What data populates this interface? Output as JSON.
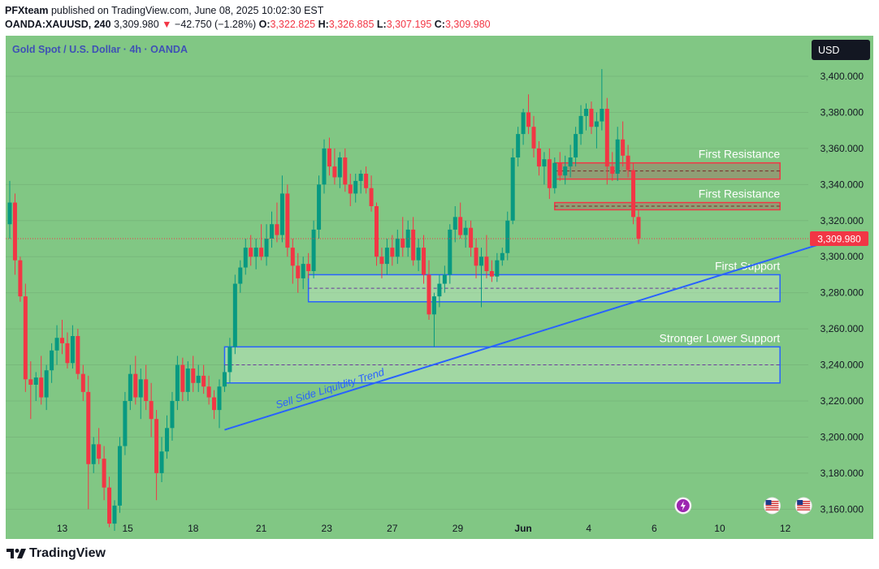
{
  "header": {
    "user": "PFXteam",
    "published_text": "published on TradingView.com, June 08, 2025 10:02:30 EST",
    "symbol": "OANDA:XAUUSD, 240",
    "price": "3,309.980",
    "change_arrow": "▼",
    "change": "−42.750 (−1.28%)",
    "o_label": "O:",
    "o_value": "3,322.825",
    "h_label": "H:",
    "h_value": "3,326.885",
    "l_label": "L:",
    "l_value": "3,307.195",
    "c_label": "C:",
    "c_value": "3,309.980"
  },
  "colors": {
    "background": "#81c784",
    "up": "#089981",
    "down": "#f23645",
    "zone_blue": "#2962ff",
    "zone_red": "#f23645",
    "axis_text": "#131722",
    "label_text": "#ffffff",
    "title_text": "#3f51b5"
  },
  "brand": {
    "name": "TradingView"
  },
  "chart_data": {
    "type": "candlestick",
    "title": "Gold Spot / U.S. Dollar · 4h · OANDA",
    "currency_badge": "USD",
    "ylim": [
      3148,
      3418
    ],
    "y_ticks": [
      3160,
      3180,
      3200,
      3220,
      3240,
      3260,
      3280,
      3300,
      3320,
      3340,
      3360,
      3380,
      3400
    ],
    "y_tick_labels": [
      "3,160.000",
      "3,180.000",
      "3,200.000",
      "3,220.000",
      "3,240.000",
      "3,260.000",
      "3,280.000",
      "3,300.000",
      "3,320.000",
      "3,340.000",
      "3,360.000",
      "3,380.000",
      "3,400.000"
    ],
    "x_tick_labels": [
      {
        "label": "13",
        "bar": 10
      },
      {
        "label": "15",
        "bar": 22.5
      },
      {
        "label": "18",
        "bar": 35
      },
      {
        "label": "21",
        "bar": 48
      },
      {
        "label": "23",
        "bar": 60.5
      },
      {
        "label": "27",
        "bar": 73
      },
      {
        "label": "29",
        "bar": 85.5
      },
      {
        "label": "Jun",
        "bar": 98,
        "bold": true
      },
      {
        "label": "4",
        "bar": 110.5
      },
      {
        "label": "6",
        "bar": 123
      },
      {
        "label": "10",
        "bar": 135.5
      },
      {
        "label": "12",
        "bar": 148
      }
    ],
    "current_price": 3309.98,
    "current_price_label": "3,309.980",
    "candles": [
      [
        3318,
        3342,
        3310,
        3330
      ],
      [
        3330,
        3335,
        3290,
        3298
      ],
      [
        3298,
        3300,
        3275,
        3278
      ],
      [
        3278,
        3285,
        3225,
        3232
      ],
      [
        3232,
        3242,
        3210,
        3229
      ],
      [
        3229,
        3236,
        3220,
        3233
      ],
      [
        3233,
        3245,
        3218,
        3222
      ],
      [
        3222,
        3240,
        3215,
        3237
      ],
      [
        3237,
        3252,
        3230,
        3248
      ],
      [
        3248,
        3262,
        3240,
        3255
      ],
      [
        3255,
        3265,
        3246,
        3252
      ],
      [
        3252,
        3258,
        3238,
        3241
      ],
      [
        3241,
        3262,
        3238,
        3256
      ],
      [
        3256,
        3260,
        3232,
        3235
      ],
      [
        3235,
        3240,
        3220,
        3225
      ],
      [
        3225,
        3234,
        3160,
        3185
      ],
      [
        3185,
        3200,
        3180,
        3196
      ],
      [
        3196,
        3205,
        3185,
        3188
      ],
      [
        3188,
        3195,
        3165,
        3172
      ],
      [
        3172,
        3178,
        3150,
        3152
      ],
      [
        3152,
        3165,
        3148,
        3162
      ],
      [
        3162,
        3200,
        3158,
        3195
      ],
      [
        3195,
        3225,
        3190,
        3220
      ],
      [
        3220,
        3240,
        3215,
        3235
      ],
      [
        3235,
        3245,
        3218,
        3222
      ],
      [
        3222,
        3238,
        3210,
        3232
      ],
      [
        3232,
        3240,
        3215,
        3220
      ],
      [
        3220,
        3230,
        3200,
        3210
      ],
      [
        3210,
        3215,
        3165,
        3180
      ],
      [
        3180,
        3200,
        3175,
        3192
      ],
      [
        3192,
        3212,
        3188,
        3205
      ],
      [
        3205,
        3225,
        3198,
        3220
      ],
      [
        3220,
        3245,
        3215,
        3240
      ],
      [
        3240,
        3244,
        3220,
        3225
      ],
      [
        3225,
        3242,
        3220,
        3238
      ],
      [
        3238,
        3245,
        3225,
        3230
      ],
      [
        3230,
        3240,
        3225,
        3234
      ],
      [
        3234,
        3240,
        3224,
        3228
      ],
      [
        3228,
        3234,
        3218,
        3222
      ],
      [
        3222,
        3226,
        3210,
        3215
      ],
      [
        3215,
        3232,
        3205,
        3228
      ],
      [
        3228,
        3240,
        3225,
        3236
      ],
      [
        3236,
        3255,
        3230,
        3250
      ],
      [
        3250,
        3290,
        3246,
        3285
      ],
      [
        3285,
        3298,
        3280,
        3294
      ],
      [
        3294,
        3310,
        3290,
        3305
      ],
      [
        3305,
        3312,
        3295,
        3300
      ],
      [
        3300,
        3310,
        3293,
        3305
      ],
      [
        3305,
        3318,
        3298,
        3300
      ],
      [
        3300,
        3318,
        3295,
        3310
      ],
      [
        3310,
        3325,
        3305,
        3318
      ],
      [
        3318,
        3330,
        3308,
        3312
      ],
      [
        3312,
        3345,
        3308,
        3335
      ],
      [
        3335,
        3340,
        3300,
        3305
      ],
      [
        3305,
        3310,
        3285,
        3295
      ],
      [
        3295,
        3302,
        3280,
        3288
      ],
      [
        3288,
        3300,
        3282,
        3296
      ],
      [
        3296,
        3302,
        3288,
        3292
      ],
      [
        3292,
        3320,
        3288,
        3315
      ],
      [
        3315,
        3345,
        3310,
        3340
      ],
      [
        3340,
        3365,
        3335,
        3360
      ],
      [
        3360,
        3366,
        3345,
        3350
      ],
      [
        3350,
        3360,
        3340,
        3344
      ],
      [
        3344,
        3358,
        3338,
        3355
      ],
      [
        3355,
        3360,
        3336,
        3340
      ],
      [
        3340,
        3346,
        3328,
        3335
      ],
      [
        3335,
        3346,
        3330,
        3342
      ],
      [
        3342,
        3348,
        3335,
        3346
      ],
      [
        3346,
        3350,
        3335,
        3338
      ],
      [
        3338,
        3345,
        3325,
        3328
      ],
      [
        3328,
        3330,
        3295,
        3300
      ],
      [
        3300,
        3305,
        3288,
        3296
      ],
      [
        3296,
        3310,
        3290,
        3305
      ],
      [
        3305,
        3312,
        3295,
        3300
      ],
      [
        3300,
        3315,
        3296,
        3310
      ],
      [
        3310,
        3322,
        3300,
        3305
      ],
      [
        3305,
        3320,
        3300,
        3315
      ],
      [
        3315,
        3322,
        3295,
        3298
      ],
      [
        3298,
        3310,
        3292,
        3305
      ],
      [
        3305,
        3312,
        3285,
        3290
      ],
      [
        3290,
        3298,
        3265,
        3268
      ],
      [
        3268,
        3280,
        3250,
        3278
      ],
      [
        3278,
        3290,
        3272,
        3285
      ],
      [
        3285,
        3295,
        3280,
        3290
      ],
      [
        3290,
        3318,
        3285,
        3315
      ],
      [
        3315,
        3328,
        3308,
        3322
      ],
      [
        3322,
        3330,
        3310,
        3312
      ],
      [
        3312,
        3320,
        3305,
        3316
      ],
      [
        3316,
        3320,
        3300,
        3305
      ],
      [
        3305,
        3310,
        3288,
        3295
      ],
      [
        3295,
        3305,
        3272,
        3300
      ],
      [
        3300,
        3312,
        3288,
        3292
      ],
      [
        3292,
        3298,
        3286,
        3289
      ],
      [
        3289,
        3302,
        3286,
        3298
      ],
      [
        3298,
        3305,
        3295,
        3302
      ],
      [
        3302,
        3325,
        3298,
        3320
      ],
      [
        3320,
        3360,
        3318,
        3355
      ],
      [
        3355,
        3372,
        3350,
        3368
      ],
      [
        3368,
        3382,
        3362,
        3380
      ],
      [
        3380,
        3390,
        3368,
        3372
      ],
      [
        3372,
        3378,
        3355,
        3360
      ],
      [
        3360,
        3364,
        3345,
        3350
      ],
      [
        3350,
        3358,
        3340,
        3354
      ],
      [
        3354,
        3360,
        3332,
        3338
      ],
      [
        3338,
        3355,
        3335,
        3352
      ],
      [
        3352,
        3358,
        3342,
        3345
      ],
      [
        3345,
        3356,
        3340,
        3350
      ],
      [
        3350,
        3362,
        3344,
        3355
      ],
      [
        3355,
        3372,
        3350,
        3368
      ],
      [
        3368,
        3384,
        3362,
        3378
      ],
      [
        3378,
        3385,
        3370,
        3382
      ],
      [
        3382,
        3386,
        3368,
        3372
      ],
      [
        3372,
        3380,
        3360,
        3375
      ],
      [
        3375,
        3404,
        3370,
        3382
      ],
      [
        3382,
        3388,
        3340,
        3350
      ],
      [
        3350,
        3358,
        3342,
        3346
      ],
      [
        3346,
        3372,
        3342,
        3365
      ],
      [
        3365,
        3375,
        3350,
        3356
      ],
      [
        3356,
        3362,
        3344,
        3348
      ],
      [
        3348,
        3352,
        3318,
        3322
      ],
      [
        3322,
        3326,
        3307,
        3309.98
      ]
    ],
    "zones": [
      {
        "label": "First Resistance",
        "top": 3352,
        "bottom": 3343,
        "mid": 3347.5,
        "color": "red",
        "bar_start": 104,
        "bar_end": 147
      },
      {
        "label": "First Resistance",
        "top": 3330,
        "bottom": 3326,
        "mid": 3328,
        "color": "red",
        "bar_start": 104,
        "bar_end": 147
      },
      {
        "label": "First Support",
        "top": 3290,
        "bottom": 3275,
        "mid": 3282.5,
        "color": "blue",
        "bar_start": 57,
        "bar_end": 147
      },
      {
        "label": "Stronger Lower Support",
        "top": 3250,
        "bottom": 3230,
        "mid": 3240,
        "color": "blue",
        "bar_start": 41,
        "bar_end": 147
      }
    ],
    "trendline": {
      "label": "Sell Side Liquidity Trend",
      "start": {
        "bar": 41,
        "price": 3204
      },
      "end": {
        "bar": 158,
        "price": 3310
      }
    },
    "event_icons": [
      {
        "name": "lightning-event-icon",
        "bar": 128.5
      },
      {
        "name": "us-flag-event-icon",
        "bar": 145.5
      },
      {
        "name": "us-flag-event-icon-2",
        "bar": 151.5
      }
    ]
  }
}
